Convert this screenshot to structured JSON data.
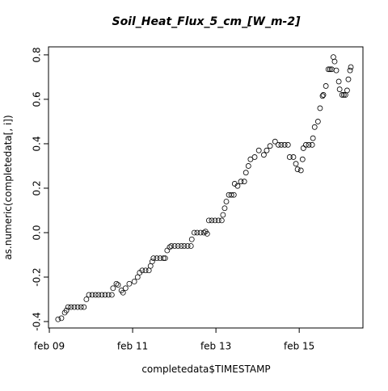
{
  "chart_data": {
    "type": "scatter",
    "title": "Soil_Heat_Flux_5_cm_[W_m-2]",
    "x_label": "completedata$TIMESTAMP",
    "y_label": "as.numeric(completedata[, i])",
    "color": "#000000",
    "title_color": "#0000cc",
    "xlim": [
      8.98,
      16.53
    ],
    "ylim": [
      -0.429,
      0.836
    ],
    "xticks": [
      {
        "value": 9,
        "label": "feb 09"
      },
      {
        "value": 11,
        "label": "feb 11"
      },
      {
        "value": 13,
        "label": "feb 13"
      },
      {
        "value": 15,
        "label": "feb 15"
      }
    ],
    "yticks": [
      -0.4,
      -0.2,
      {
        "value": 0,
        "label": "0.0"
      },
      0.2,
      0.4,
      0.6,
      0.8
    ],
    "x": [
      9.21,
      9.29,
      9.37,
      9.41,
      9.45,
      9.52,
      9.6,
      9.68,
      9.76,
      9.83,
      9.89,
      9.95,
      10.03,
      10.11,
      10.18,
      10.26,
      10.34,
      10.42,
      10.5,
      10.53,
      10.61,
      10.65,
      10.73,
      10.77,
      10.83,
      10.92,
      11.04,
      11.12,
      11.17,
      11.23,
      11.31,
      11.39,
      11.43,
      11.47,
      11.5,
      11.58,
      11.66,
      11.74,
      11.78,
      11.83,
      11.89,
      11.93,
      12.01,
      12.09,
      12.17,
      12.24,
      12.32,
      12.4,
      12.42,
      12.48,
      12.55,
      12.63,
      12.71,
      12.75,
      12.79,
      12.83,
      12.9,
      12.98,
      13.06,
      13.14,
      13.17,
      13.21,
      13.25,
      13.31,
      13.37,
      13.43,
      13.45,
      13.52,
      13.6,
      13.68,
      13.72,
      13.78,
      13.83,
      13.93,
      14.03,
      14.15,
      14.22,
      14.3,
      14.42,
      14.5,
      14.57,
      14.65,
      14.73,
      14.77,
      14.86,
      14.92,
      14.96,
      15.04,
      15.08,
      15.1,
      15.16,
      15.23,
      15.31,
      15.33,
      15.37,
      15.45,
      15.5,
      15.56,
      15.58,
      15.64,
      15.7,
      15.74,
      15.78,
      15.82,
      15.85,
      15.89,
      15.95,
      15.97,
      16.03,
      16.07,
      16.11,
      16.15,
      16.18,
      16.22,
      16.24
    ],
    "values": [
      -0.39,
      -0.385,
      -0.36,
      -0.35,
      -0.335,
      -0.335,
      -0.335,
      -0.335,
      -0.335,
      -0.335,
      -0.3,
      -0.28,
      -0.28,
      -0.28,
      -0.28,
      -0.28,
      -0.28,
      -0.28,
      -0.28,
      -0.25,
      -0.23,
      -0.235,
      -0.26,
      -0.27,
      -0.25,
      -0.23,
      -0.22,
      -0.2,
      -0.18,
      -0.17,
      -0.17,
      -0.17,
      -0.15,
      -0.13,
      -0.115,
      -0.115,
      -0.115,
      -0.115,
      -0.115,
      -0.08,
      -0.065,
      -0.06,
      -0.06,
      -0.06,
      -0.06,
      -0.06,
      -0.06,
      -0.06,
      -0.03,
      0.0,
      0.0,
      0.0,
      0.0,
      0.005,
      -0.005,
      0.055,
      0.055,
      0.055,
      0.055,
      0.055,
      0.08,
      0.11,
      0.14,
      0.17,
      0.17,
      0.17,
      0.22,
      0.21,
      0.23,
      0.23,
      0.27,
      0.3,
      0.33,
      0.34,
      0.37,
      0.35,
      0.37,
      0.39,
      0.41,
      0.395,
      0.395,
      0.395,
      0.395,
      0.34,
      0.34,
      0.31,
      0.285,
      0.28,
      0.33,
      0.38,
      0.395,
      0.395,
      0.395,
      0.425,
      0.475,
      0.5,
      0.56,
      0.615,
      0.62,
      0.66,
      0.735,
      0.735,
      0.735,
      0.79,
      0.77,
      0.73,
      0.68,
      0.645,
      0.62,
      0.62,
      0.62,
      0.64,
      0.69,
      0.73,
      0.745
    ]
  }
}
